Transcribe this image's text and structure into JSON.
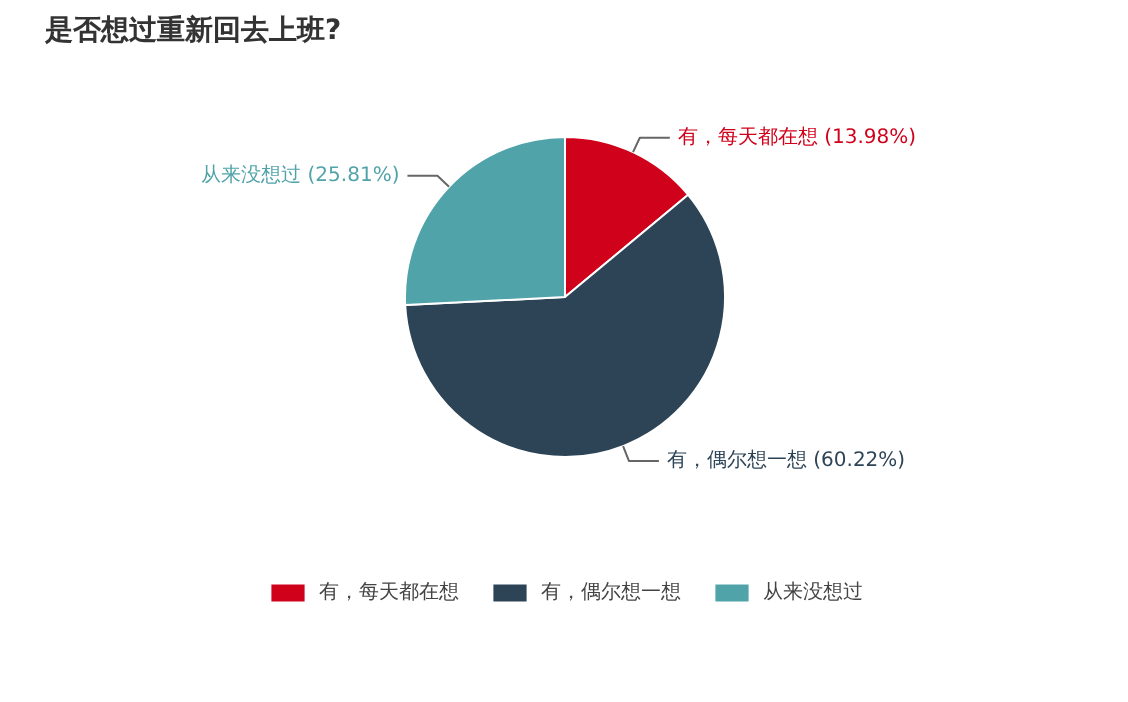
{
  "chart_data": {
    "type": "pie",
    "title": "是否想过重新回去上班?",
    "categories": [
      "有，每天都在想",
      "有，偶尔想一想",
      "从来没想过"
    ],
    "values": [
      13.98,
      60.22,
      25.81
    ],
    "colors": [
      "#d0021b",
      "#2d4456",
      "#50a3a9"
    ],
    "value_labels": [
      "有，每天都在想 (13.98%)",
      "有，偶尔想一想 (60.22%)",
      "从来没想过 (25.81%)"
    ],
    "legend": "bottom"
  }
}
